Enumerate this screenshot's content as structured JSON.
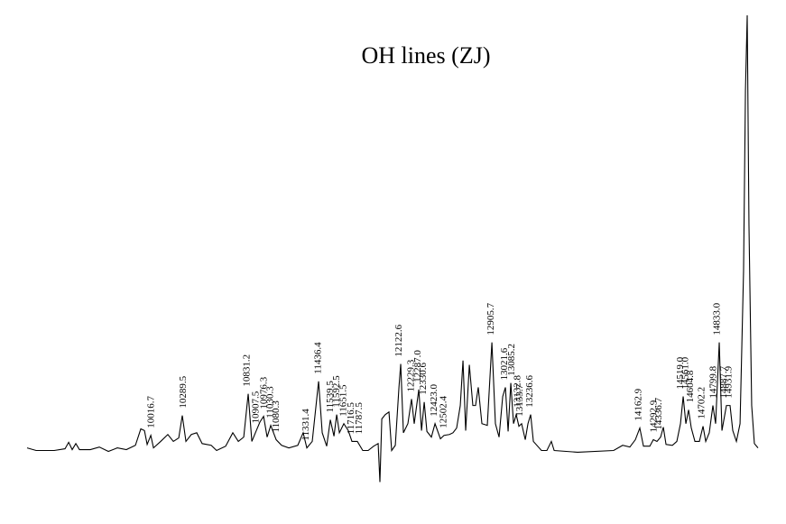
{
  "chart_data": {
    "type": "spectrum",
    "title": "OH lines (ZJ)",
    "xlim": [
      8956,
      15177
    ],
    "ylim": [
      -8,
      100
    ],
    "series": [
      {
        "color": "#000000",
        "x": [
          8956,
          9033,
          9187,
          9279,
          9310,
          9340,
          9371,
          9402,
          9494,
          9571,
          9648,
          9724,
          9801,
          9878,
          9924,
          9955,
          9978,
          10009,
          10032,
          10093,
          10154,
          10201,
          10247,
          10277,
          10308,
          10354,
          10400,
          10446,
          10523,
          10569,
          10646,
          10707,
          10754,
          10800,
          10838,
          10869,
          10907,
          10938,
          10969,
          10999,
          11030,
          11076,
          11122,
          11184,
          11260,
          11306,
          11337,
          11383,
          11437,
          11468,
          11506,
          11537,
          11568,
          11591,
          11614,
          11652,
          11690,
          11721,
          11767,
          11813,
          11859,
          11906,
          11944,
          11959,
          11975,
          12005,
          12036,
          12059,
          12090,
          12121,
          12136,
          12159,
          12197,
          12228,
          12251,
          12290,
          12313,
          12336,
          12359,
          12397,
          12428,
          12474,
          12505,
          12551,
          12581,
          12612,
          12643,
          12666,
          12689,
          12720,
          12750,
          12773,
          12796,
          12827,
          12873,
          12912,
          12942,
          12973,
          13004,
          13027,
          13050,
          13073,
          13096,
          13119,
          13142,
          13165,
          13196,
          13219,
          13242,
          13265,
          13334,
          13380,
          13418,
          13442,
          13641,
          13948,
          14025,
          14086,
          14133,
          14171,
          14202,
          14256,
          14286,
          14317,
          14348,
          14371,
          14394,
          14448,
          14486,
          14517,
          14540,
          14563,
          14586,
          14609,
          14640,
          14678,
          14709,
          14732,
          14762,
          14793,
          14816,
          14847,
          14870,
          14908,
          14939,
          14962,
          14993,
          15024,
          15054,
          15070,
          15085,
          15100,
          15123,
          15146,
          15177
        ],
        "values": [
          0,
          -0.6,
          -0.6,
          -0.2,
          1.3,
          -0.4,
          1.0,
          -0.4,
          -0.4,
          0.2,
          -0.8,
          0,
          -0.4,
          0.6,
          4.4,
          4.0,
          0.8,
          2.9,
          0,
          1.5,
          3.1,
          1.5,
          2.3,
          7.5,
          1.5,
          3.1,
          3.5,
          1.0,
          0.6,
          -0.6,
          0.4,
          3.5,
          1.5,
          2.5,
          12.5,
          1.5,
          4.0,
          6.0,
          7.3,
          2.5,
          5.2,
          1.9,
          0.6,
          0,
          0.6,
          3.5,
          0,
          1.5,
          15.4,
          3.5,
          0.4,
          6.5,
          2.7,
          7.7,
          3.5,
          5.6,
          4.0,
          1.5,
          1.5,
          -0.6,
          -0.6,
          0.4,
          1.0,
          -7.9,
          6.7,
          7.7,
          8.3,
          -0.6,
          0.6,
          14.0,
          19.4,
          3.5,
          5.6,
          11.3,
          5.6,
          13.5,
          4.0,
          10.6,
          3.8,
          2.5,
          5.6,
          2.1,
          2.9,
          3.1,
          3.5,
          4.6,
          9.8,
          20.2,
          4.0,
          19.2,
          9.8,
          9.8,
          14.0,
          5.6,
          5.2,
          24.4,
          5.6,
          2.5,
          11.9,
          14.0,
          3.8,
          15.0,
          5.6,
          7.7,
          5.0,
          5.6,
          1.9,
          5.6,
          7.7,
          1.5,
          -0.6,
          -0.6,
          1.5,
          -0.6,
          -1.0,
          -0.6,
          0.6,
          0.2,
          1.9,
          4.6,
          0.4,
          0.4,
          1.9,
          1.5,
          2.5,
          4.8,
          0.8,
          0.6,
          1.5,
          5.6,
          11.9,
          5.6,
          8.8,
          4.6,
          1.5,
          1.5,
          5.0,
          1.5,
          3.5,
          9.8,
          5.6,
          24.4,
          4.0,
          9.8,
          9.8,
          4.0,
          1.5,
          5.6,
          41.0,
          82.7,
          100,
          51.5,
          9.8,
          1.0,
          0
        ]
      }
    ],
    "line_labels": [
      10016.7,
      10289.5,
      10831.2,
      10907.5,
      10976.3,
      11030.3,
      11080.3,
      11331.4,
      11436.4,
      11539.5,
      11592.5,
      11651.5,
      11716.5,
      11787.5,
      12122.6,
      12229.3,
      {
        "value": 12287.0,
        "label": "12287.0"
      },
      12330.6,
      {
        "value": 12423.0,
        "label": "12423.0"
      },
      12502.4,
      12905.7,
      13021.6,
      13085.2,
      13132.8,
      13153.7,
      13236.6,
      14162.9,
      14292.9,
      14336.7,
      {
        "value": 14519.0,
        "label": "14519.0"
      },
      {
        "value": 14561.0,
        "label": "14561.0"
      },
      14604.8,
      14702.2,
      14799.8,
      {
        "value": 14833.0,
        "label": "14833.0"
      },
      14887.7,
      14931.9
    ]
  }
}
